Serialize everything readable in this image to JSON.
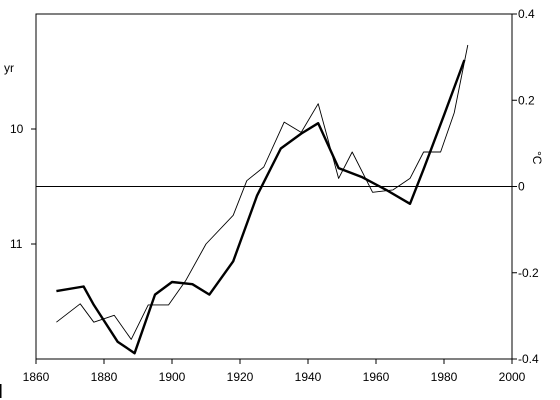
{
  "chart_data": {
    "type": "line",
    "title": "",
    "xlabel": "",
    "ylabel_left": "yr",
    "ylabel_right": "°C",
    "xlim": [
      1860,
      2000
    ],
    "x_ticks": [
      1860,
      1880,
      1900,
      1920,
      1940,
      1960,
      1980,
      2000
    ],
    "x_tick_labels": [
      "1860",
      "1880",
      "1900",
      "1920",
      "1940",
      "1960",
      "1980",
      "2000"
    ],
    "y_left_lim": [
      12.0,
      9.0
    ],
    "y_left_ticks": [
      10,
      11
    ],
    "y_left_tick_labels": [
      "10",
      "11"
    ],
    "y_right_lim": [
      -0.4,
      0.4
    ],
    "y_right_ticks": [
      0.4,
      0.2,
      0,
      -0.2,
      -0.4
    ],
    "y_right_tick_labels": [
      "0.4",
      "0.2",
      "0",
      "-0.2",
      "-0.4"
    ],
    "reference_line_y_right": 0,
    "series": [
      {
        "axis": "left",
        "style": "thick",
        "x": [
          1866,
          1874,
          1877,
          1884,
          1889,
          1895,
          1900,
          1906,
          1911,
          1918,
          1925,
          1932,
          1938,
          1943,
          1949,
          1956,
          1963,
          1970,
          1974,
          1980,
          1986
        ],
        "y": [
          11.41,
          11.37,
          11.53,
          11.85,
          11.95,
          11.44,
          11.33,
          11.35,
          11.44,
          11.15,
          10.58,
          10.17,
          10.04,
          9.95,
          10.34,
          10.42,
          10.53,
          10.65,
          10.35,
          9.88,
          9.4
        ]
      },
      {
        "axis": "left",
        "style": "thin",
        "x": [
          1866,
          1873,
          1877,
          1883,
          1888,
          1893,
          1899,
          1904,
          1910,
          1918,
          1922,
          1927,
          1933,
          1938,
          1943,
          1949,
          1953,
          1959,
          1965,
          1970,
          1974,
          1979,
          1983,
          1987
        ],
        "y": [
          11.68,
          11.52,
          11.68,
          11.62,
          11.83,
          11.53,
          11.53,
          11.32,
          11.0,
          10.75,
          10.45,
          10.33,
          9.94,
          10.03,
          9.78,
          10.43,
          10.2,
          10.55,
          10.53,
          10.43,
          10.2,
          10.2,
          9.86,
          9.27
        ]
      }
    ],
    "grid": false,
    "legend": "none"
  },
  "icons": {
    "corner-mark": "vertical bar"
  }
}
